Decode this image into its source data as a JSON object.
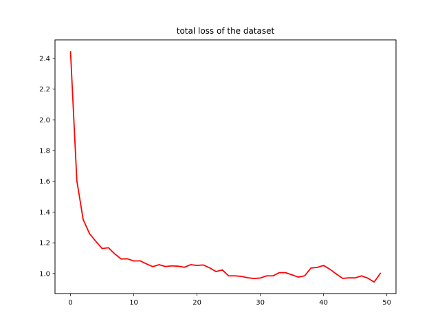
{
  "chart_data": {
    "type": "line",
    "title": "total loss of the dataset",
    "xlabel": "",
    "ylabel": "",
    "xlim": [
      -2.45,
      51.45
    ],
    "ylim": [
      0.87,
      2.52
    ],
    "xticks": [
      0,
      10,
      20,
      30,
      40,
      50
    ],
    "yticks": [
      1.0,
      1.2,
      1.4,
      1.6,
      1.8,
      2.0,
      2.2,
      2.4
    ],
    "ytick_labels": [
      "1.0",
      "1.2",
      "1.4",
      "1.6",
      "1.8",
      "2.0",
      "2.2",
      "2.4"
    ],
    "grid": false,
    "legend": "none",
    "line_color": "#ff0000",
    "series": [
      {
        "x": [
          0,
          1,
          2,
          3,
          4,
          5,
          6,
          7,
          8,
          9,
          10,
          11,
          12,
          13,
          14,
          15,
          16,
          17,
          18,
          19,
          20,
          21,
          22,
          23,
          24,
          25,
          26,
          27,
          28,
          29,
          30,
          31,
          32,
          33,
          34,
          35,
          36,
          37,
          38,
          39,
          40,
          41,
          42,
          43,
          44,
          45,
          46,
          47,
          48,
          49
        ],
        "values": [
          2.445,
          1.605,
          1.352,
          1.26,
          1.21,
          1.163,
          1.168,
          1.128,
          1.095,
          1.096,
          1.082,
          1.083,
          1.063,
          1.045,
          1.058,
          1.046,
          1.05,
          1.048,
          1.041,
          1.058,
          1.053,
          1.056,
          1.037,
          1.013,
          1.024,
          0.985,
          0.985,
          0.982,
          0.973,
          0.968,
          0.971,
          0.985,
          0.985,
          1.006,
          1.006,
          0.992,
          0.977,
          0.985,
          1.036,
          1.04,
          1.053,
          1.028,
          0.998,
          0.969,
          0.972,
          0.972,
          0.985,
          0.97,
          0.945,
          1.003
        ]
      }
    ]
  }
}
